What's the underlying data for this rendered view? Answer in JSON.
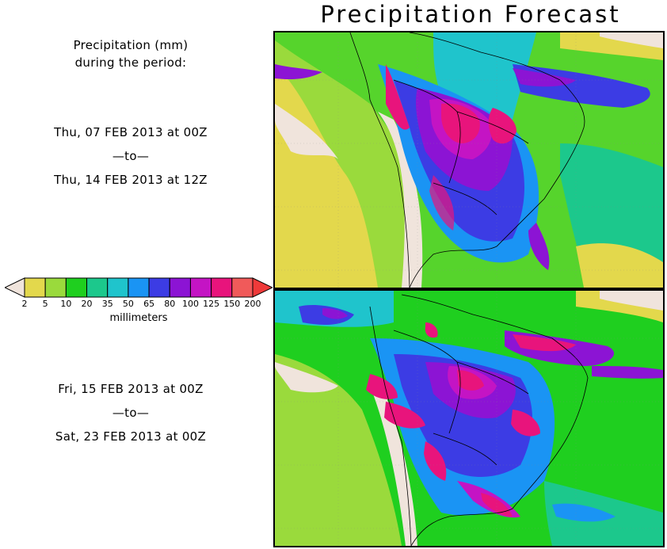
{
  "title": "Precipitation Forecast",
  "header_text": {
    "line1": "Precipitation (mm)",
    "line2": "during the period:"
  },
  "period1": {
    "start": "Thu, 07 FEB 2013 at 00Z",
    "sep": "—to—",
    "end": "Thu, 14 FEB 2013 at 12Z"
  },
  "period2": {
    "start": "Fri, 15 FEB 2013 at 00Z",
    "sep": "—to—",
    "end": "Sat, 23 FEB 2013 at 00Z"
  },
  "legend": {
    "unit": "millimeters",
    "thresholds": [
      "2",
      "5",
      "10",
      "20",
      "35",
      "50",
      "65",
      "80",
      "100",
      "125",
      "150",
      "200"
    ],
    "colors": [
      "#f0e4dc",
      "#e3d84c",
      "#9ada3c",
      "#1fcf1f",
      "#1cc88c",
      "#1fc4cc",
      "#1a94f4",
      "#3c3ce4",
      "#8c14d4",
      "#c414c4",
      "#e8147c",
      "#f05a5a",
      "#ef3a3a"
    ]
  }
}
